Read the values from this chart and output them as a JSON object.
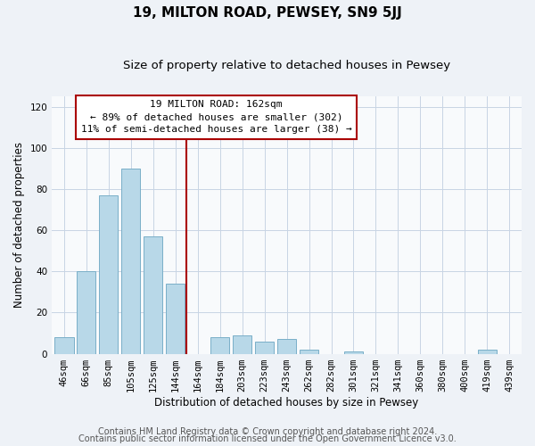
{
  "title": "19, MILTON ROAD, PEWSEY, SN9 5JJ",
  "subtitle": "Size of property relative to detached houses in Pewsey",
  "xlabel": "Distribution of detached houses by size in Pewsey",
  "ylabel": "Number of detached properties",
  "bar_labels": [
    "46sqm",
    "66sqm",
    "85sqm",
    "105sqm",
    "125sqm",
    "144sqm",
    "164sqm",
    "184sqm",
    "203sqm",
    "223sqm",
    "243sqm",
    "262sqm",
    "282sqm",
    "301sqm",
    "321sqm",
    "341sqm",
    "360sqm",
    "380sqm",
    "400sqm",
    "419sqm",
    "439sqm"
  ],
  "bar_values": [
    8,
    40,
    77,
    90,
    57,
    34,
    0,
    8,
    9,
    6,
    7,
    2,
    0,
    1,
    0,
    0,
    0,
    0,
    0,
    2,
    0
  ],
  "bar_color": "#b8d8e8",
  "bar_edge_color": "#7aafc8",
  "vline_x_idx": 6,
  "vline_color": "#aa0000",
  "annotation_title": "19 MILTON ROAD: 162sqm",
  "annotation_line1": "← 89% of detached houses are smaller (302)",
  "annotation_line2": "11% of semi-detached houses are larger (38) →",
  "annotation_box_color": "#ffffff",
  "annotation_box_edge": "#aa0000",
  "ylim": [
    0,
    125
  ],
  "yticks": [
    0,
    20,
    40,
    60,
    80,
    100,
    120
  ],
  "footer1": "Contains HM Land Registry data © Crown copyright and database right 2024.",
  "footer2": "Contains public sector information licensed under the Open Government Licence v3.0.",
  "bg_color": "#eef2f7",
  "plot_bg_color": "#f8fafc",
  "grid_color": "#c8d4e4",
  "title_fontsize": 11,
  "subtitle_fontsize": 9.5,
  "axis_label_fontsize": 8.5,
  "tick_fontsize": 7.5,
  "annotation_fontsize": 8,
  "footer_fontsize": 7
}
